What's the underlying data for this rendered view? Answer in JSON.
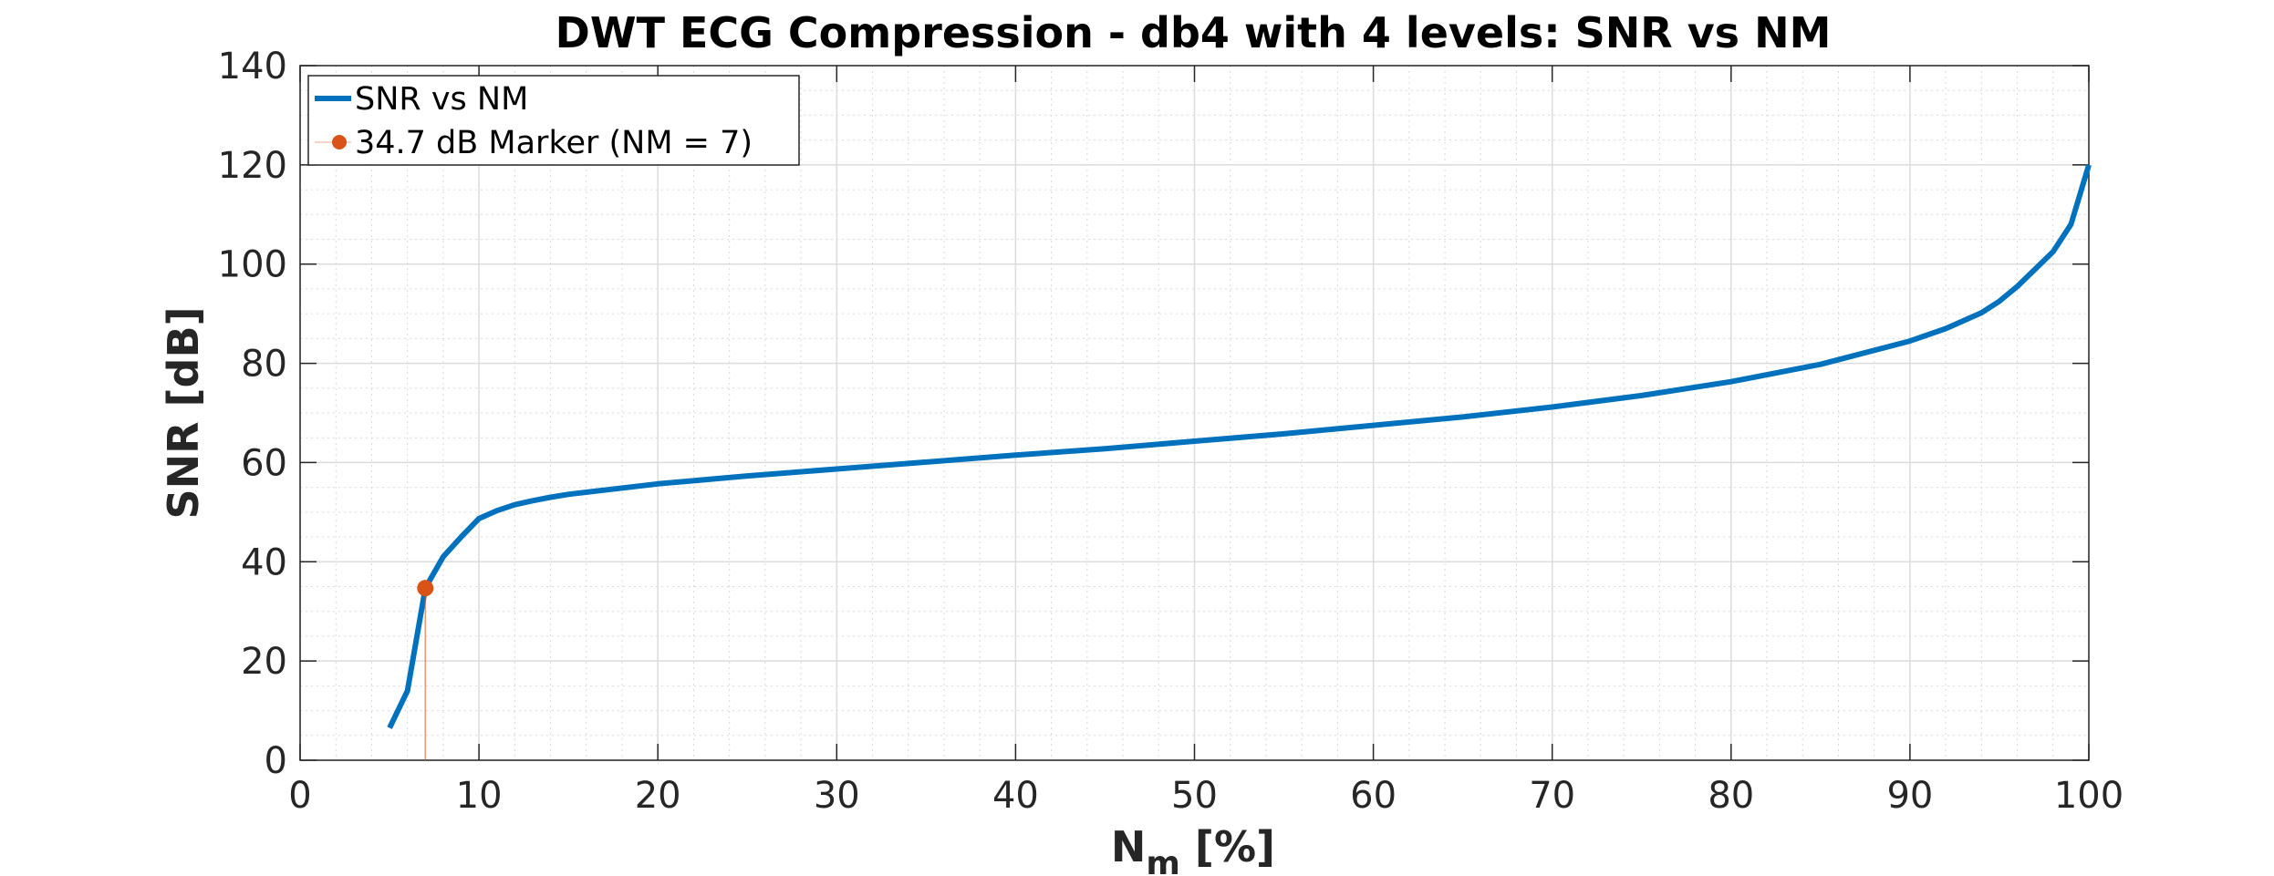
{
  "chart_data": {
    "type": "line",
    "title": "DWT ECG Compression - db4 with 4 levels: SNR vs NM",
    "xlabel": "N",
    "xlabel_sub": "m",
    "xlabel_suffix": " [%]",
    "ylabel": "SNR [dB]",
    "xlim": [
      0,
      100
    ],
    "ylim": [
      0,
      140
    ],
    "xticks": [
      0,
      10,
      20,
      30,
      40,
      50,
      60,
      70,
      80,
      90,
      100
    ],
    "yticks": [
      0,
      20,
      40,
      60,
      80,
      100,
      120,
      140
    ],
    "grid": true,
    "minor_grid": true,
    "legend_position": "top-left",
    "series": [
      {
        "name": "SNR vs NM",
        "color": "#0072BD",
        "x": [
          5,
          6,
          7,
          8,
          9,
          10,
          11,
          12,
          13,
          14,
          15,
          20,
          25,
          30,
          35,
          40,
          45,
          50,
          55,
          60,
          65,
          70,
          75,
          80,
          85,
          90,
          92,
          94,
          95,
          96,
          97,
          98,
          99,
          100
        ],
        "y": [
          6.5,
          14,
          34.7,
          41,
          45,
          48.7,
          50.3,
          51.5,
          52.3,
          53,
          53.6,
          55.7,
          57.3,
          58.7,
          60.1,
          61.5,
          62.8,
          64.3,
          65.8,
          67.5,
          69.2,
          71.2,
          73.5,
          76.3,
          79.8,
          84.5,
          87,
          90.2,
          92.5,
          95.5,
          99,
          102.5,
          108,
          120
        ]
      }
    ],
    "markers": [
      {
        "name": "34.7 dB Marker (NM = 7)",
        "color": "#D95319",
        "x": 7,
        "y": 34.7
      }
    ]
  }
}
